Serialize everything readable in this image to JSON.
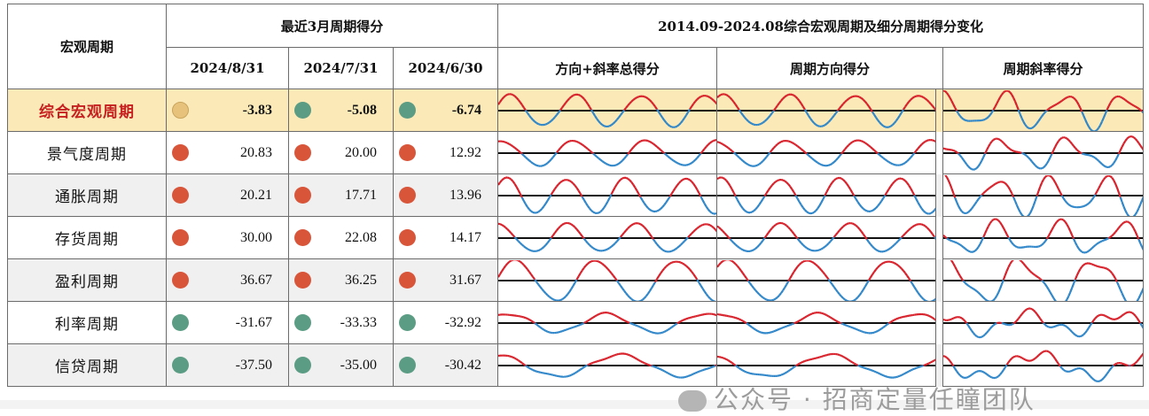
{
  "header": {
    "row_label": "宏观周期",
    "recent_title": "最近3月周期得分",
    "dates": [
      "2024/8/31",
      "2024/7/31",
      "2024/6/30"
    ],
    "change_title": "2014.09-2024.08综合宏观周期及细分周期得分变化",
    "sub_titles": [
      "方向+斜率总得分",
      "周期方向得分",
      "周期斜率得分"
    ]
  },
  "rows": [
    {
      "name": "综合宏观周期",
      "values": [
        "-3.83",
        "-5.08",
        "-6.74"
      ],
      "dots": [
        "yellow",
        "green",
        "green"
      ]
    },
    {
      "name": "景气度周期",
      "values": [
        "20.83",
        "20.00",
        "12.92"
      ],
      "dots": [
        "red",
        "red",
        "red"
      ]
    },
    {
      "name": "通胀周期",
      "values": [
        "20.21",
        "17.71",
        "13.96"
      ],
      "dots": [
        "red",
        "red",
        "red"
      ]
    },
    {
      "name": "存货周期",
      "values": [
        "30.00",
        "22.08",
        "14.17"
      ],
      "dots": [
        "red",
        "red",
        "red"
      ]
    },
    {
      "name": "盈利周期",
      "values": [
        "36.67",
        "36.25",
        "31.67"
      ],
      "dots": [
        "red",
        "red",
        "red"
      ]
    },
    {
      "name": "利率周期",
      "values": [
        "-31.67",
        "-33.33",
        "-32.92"
      ],
      "dots": [
        "green",
        "green",
        "green"
      ]
    },
    {
      "name": "信贷周期",
      "values": [
        "-37.50",
        "-35.00",
        "-30.42"
      ],
      "dots": [
        "green",
        "green",
        "green"
      ]
    }
  ],
  "colors": {
    "positive": "#d8202a",
    "negative": "#2f86c9",
    "dot_red": "#d8553a",
    "dot_green": "#5b9c84",
    "dot_neutral": "#e7c27a",
    "highlight": "#fbeab8"
  },
  "watermark": "公众号 · 招商定量任瞳团队"
}
